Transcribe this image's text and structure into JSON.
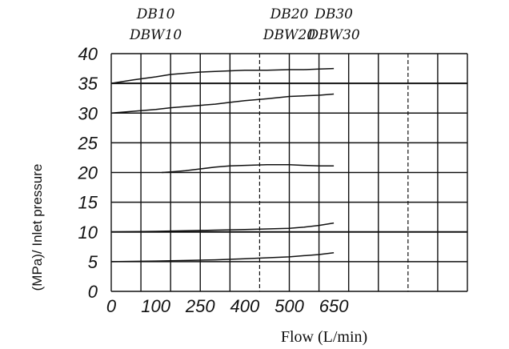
{
  "chart_data": {
    "type": "line",
    "xlabel": "Flow   (L/min)",
    "ylabel": "(MPa)/ Inlet pressure",
    "ylim": [
      0,
      40
    ],
    "grid": true,
    "x_tick_labels": [
      "0",
      "100",
      "250",
      "400",
      "500",
      "650"
    ],
    "y_tick_labels": [
      "0",
      "5",
      "10",
      "15",
      "20",
      "25",
      "30",
      "35",
      "40"
    ],
    "size_labels": [
      {
        "line1": "DB10",
        "line2": "DBW10",
        "at_tick": 1
      },
      {
        "line1": "DB20",
        "line2": "DBW20",
        "at_tick": 4
      },
      {
        "line1": "DB30",
        "line2": "DBW30",
        "at_tick": 5
      }
    ],
    "x_axis_note": "x-axis tick spacing is uneven: 0, 100, 250, 400, 500, 650 at positions 0, 1.5, 3, 4.5, 6, 7.5 grid cells",
    "series": [
      {
        "x": [
          0,
          50,
          100,
          150,
          200,
          250,
          300,
          350,
          400,
          450,
          500,
          550,
          600,
          650
        ],
        "values": [
          35,
          35.6,
          36.1,
          36.5,
          36.7,
          36.9,
          37.0,
          37.1,
          37.2,
          37.2,
          37.3,
          37.3,
          37.4,
          37.5
        ]
      },
      {
        "x": [
          0,
          50,
          100,
          150,
          200,
          250,
          300,
          350,
          400,
          450,
          500,
          550,
          600,
          650
        ],
        "values": [
          30,
          30.3,
          30.6,
          30.9,
          31.1,
          31.3,
          31.5,
          31.8,
          32.1,
          32.4,
          32.8,
          32.9,
          33.0,
          33.2
        ]
      },
      {
        "x": [
          120,
          150,
          200,
          250,
          300,
          350,
          400,
          450,
          500,
          550,
          600,
          650
        ],
        "values": [
          20,
          20.1,
          20.3,
          20.6,
          20.9,
          21.1,
          21.2,
          21.3,
          21.3,
          21.2,
          21.1,
          21.1
        ]
      },
      {
        "x": [
          0,
          100,
          200,
          250,
          300,
          400,
          500,
          550,
          600,
          650
        ],
        "values": [
          10,
          10.1,
          10.2,
          10.25,
          10.3,
          10.4,
          10.6,
          10.8,
          11.1,
          11.5
        ]
      },
      {
        "x": [
          0,
          100,
          200,
          250,
          300,
          400,
          500,
          550,
          600,
          650
        ],
        "values": [
          5,
          5.1,
          5.2,
          5.25,
          5.3,
          5.5,
          5.8,
          6.0,
          6.2,
          6.5
        ]
      }
    ]
  }
}
